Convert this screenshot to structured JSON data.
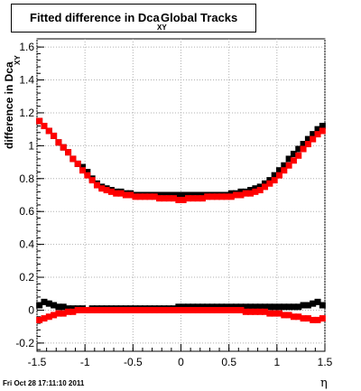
{
  "header": {
    "title_main": "Fitted difference in Dca",
    "title_sub": "XY",
    "title_rest": "Global Tracks"
  },
  "footer": {
    "timestamp": "Fri Oct 28 17:11:10 2011"
  },
  "colors": {
    "series_black": "#000000",
    "series_red": "#ff0000",
    "grid": "#b0b0b0",
    "frame": "#000000"
  },
  "chart_data": {
    "type": "scatter",
    "xlabel": "η",
    "ylabel": "difference in Dca",
    "ylabel_sub": "XY",
    "xlim": [
      -1.5,
      1.5
    ],
    "ylim": [
      -0.25,
      1.65
    ],
    "xticks": [
      -1.5,
      -1,
      -0.5,
      0,
      0.5,
      1,
      1.5
    ],
    "xtick_labels": [
      "-1.5",
      "-1",
      "-0.5",
      "0",
      "0.5",
      "1",
      "1.5"
    ],
    "yticks": [
      -0.2,
      0,
      0.2,
      0.4,
      0.6,
      0.8,
      1,
      1.2,
      1.4,
      1.6
    ],
    "ytick_labels": [
      "-0.2",
      "0",
      "0.2",
      "0.4",
      "0.6",
      "0.8",
      "1",
      "1.2",
      "1.4",
      "1.6"
    ],
    "grid": true,
    "series": [
      {
        "color": "black",
        "marker": "square",
        "x": [
          -1.475,
          -1.425,
          -1.375,
          -1.325,
          -1.275,
          -1.225,
          -1.175,
          -1.125,
          -1.075,
          -1.025,
          -0.975,
          -0.925,
          -0.875,
          -0.825,
          -0.775,
          -0.725,
          -0.675,
          -0.625,
          -0.575,
          -0.525,
          -0.475,
          -0.425,
          -0.375,
          -0.325,
          -0.275,
          -0.225,
          -0.175,
          -0.125,
          -0.075,
          -0.025,
          0.025,
          0.075,
          0.125,
          0.175,
          0.225,
          0.275,
          0.325,
          0.375,
          0.425,
          0.475,
          0.525,
          0.575,
          0.625,
          0.675,
          0.725,
          0.775,
          0.825,
          0.875,
          0.925,
          0.975,
          1.025,
          1.075,
          1.125,
          1.175,
          1.225,
          1.275,
          1.325,
          1.375,
          1.425,
          1.475
        ],
        "y": [
          1.15,
          1.12,
          1.09,
          1.06,
          1.02,
          0.99,
          0.96,
          0.92,
          0.89,
          0.87,
          0.84,
          0.8,
          0.77,
          0.75,
          0.74,
          0.73,
          0.72,
          0.72,
          0.71,
          0.71,
          0.7,
          0.7,
          0.7,
          0.7,
          0.7,
          0.7,
          0.7,
          0.7,
          0.7,
          0.7,
          0.7,
          0.7,
          0.7,
          0.7,
          0.7,
          0.7,
          0.7,
          0.7,
          0.7,
          0.7,
          0.71,
          0.71,
          0.72,
          0.72,
          0.73,
          0.74,
          0.75,
          0.77,
          0.79,
          0.82,
          0.85,
          0.88,
          0.92,
          0.95,
          0.98,
          1.01,
          1.04,
          1.07,
          1.1,
          1.12
        ]
      },
      {
        "color": "red",
        "marker": "square",
        "x": [
          -1.475,
          -1.425,
          -1.375,
          -1.325,
          -1.275,
          -1.225,
          -1.175,
          -1.125,
          -1.075,
          -1.025,
          -0.975,
          -0.925,
          -0.875,
          -0.825,
          -0.775,
          -0.725,
          -0.675,
          -0.625,
          -0.575,
          -0.525,
          -0.475,
          -0.425,
          -0.375,
          -0.325,
          -0.275,
          -0.225,
          -0.175,
          -0.125,
          -0.075,
          -0.025,
          0.025,
          0.075,
          0.125,
          0.175,
          0.225,
          0.275,
          0.325,
          0.375,
          0.425,
          0.475,
          0.525,
          0.575,
          0.625,
          0.675,
          0.725,
          0.775,
          0.825,
          0.875,
          0.925,
          0.975,
          1.025,
          1.075,
          1.125,
          1.175,
          1.225,
          1.275,
          1.325,
          1.375,
          1.425,
          1.475
        ],
        "y": [
          1.15,
          1.12,
          1.09,
          1.06,
          1.02,
          0.99,
          0.96,
          0.92,
          0.89,
          0.85,
          0.82,
          0.79,
          0.76,
          0.74,
          0.73,
          0.72,
          0.71,
          0.71,
          0.7,
          0.7,
          0.69,
          0.69,
          0.69,
          0.69,
          0.69,
          0.68,
          0.68,
          0.68,
          0.68,
          0.67,
          0.67,
          0.68,
          0.68,
          0.68,
          0.68,
          0.69,
          0.69,
          0.69,
          0.69,
          0.69,
          0.69,
          0.7,
          0.7,
          0.71,
          0.71,
          0.72,
          0.73,
          0.75,
          0.77,
          0.79,
          0.82,
          0.85,
          0.88,
          0.91,
          0.94,
          0.98,
          1.01,
          1.04,
          1.07,
          1.09
        ]
      },
      {
        "color": "black",
        "marker": "square",
        "x": [
          -1.475,
          -1.425,
          -1.375,
          -1.325,
          -1.275,
          -1.225,
          -1.175,
          -1.125,
          -1.075,
          -1.025,
          -0.975,
          -0.925,
          -0.875,
          -0.825,
          -0.775,
          -0.725,
          -0.675,
          -0.625,
          -0.575,
          -0.525,
          -0.475,
          -0.425,
          -0.375,
          -0.325,
          -0.275,
          -0.225,
          -0.175,
          -0.125,
          -0.075,
          -0.025,
          0.025,
          0.075,
          0.125,
          0.175,
          0.225,
          0.275,
          0.325,
          0.375,
          0.425,
          0.475,
          0.525,
          0.575,
          0.625,
          0.675,
          0.725,
          0.775,
          0.825,
          0.875,
          0.925,
          0.975,
          1.025,
          1.075,
          1.125,
          1.175,
          1.225,
          1.275,
          1.325,
          1.375,
          1.425,
          1.475
        ],
        "y": [
          0.03,
          0.05,
          0.04,
          0.03,
          0.02,
          0.02,
          0.01,
          0.01,
          0.01,
          0.01,
          0.0,
          0.01,
          0.01,
          0.01,
          0.01,
          0.01,
          0.01,
          0.01,
          0.01,
          0.01,
          0.01,
          0.01,
          0.01,
          0.01,
          0.01,
          0.01,
          0.01,
          0.01,
          0.01,
          0.02,
          0.02,
          0.02,
          0.02,
          0.02,
          0.02,
          0.02,
          0.02,
          0.02,
          0.02,
          0.02,
          0.02,
          0.02,
          0.02,
          0.02,
          0.02,
          0.02,
          0.02,
          0.02,
          0.02,
          0.02,
          0.02,
          0.02,
          0.02,
          0.02,
          0.02,
          0.03,
          0.03,
          0.04,
          0.05,
          0.03
        ]
      },
      {
        "color": "red",
        "marker": "square",
        "x": [
          -1.475,
          -1.425,
          -1.375,
          -1.325,
          -1.275,
          -1.225,
          -1.175,
          -1.125,
          -1.075,
          -1.025,
          -0.975,
          -0.925,
          -0.875,
          -0.825,
          -0.775,
          -0.725,
          -0.675,
          -0.625,
          -0.575,
          -0.525,
          -0.475,
          -0.425,
          -0.375,
          -0.325,
          -0.275,
          -0.225,
          -0.175,
          -0.125,
          -0.075,
          -0.025,
          0.025,
          0.075,
          0.125,
          0.175,
          0.225,
          0.275,
          0.325,
          0.375,
          0.425,
          0.475,
          0.525,
          0.575,
          0.625,
          0.675,
          0.725,
          0.775,
          0.825,
          0.875,
          0.925,
          0.975,
          1.025,
          1.075,
          1.125,
          1.175,
          1.225,
          1.275,
          1.325,
          1.375,
          1.425,
          1.475
        ],
        "y": [
          -0.06,
          -0.05,
          -0.04,
          -0.03,
          -0.02,
          -0.02,
          -0.01,
          -0.01,
          0.0,
          0.0,
          0.0,
          0.0,
          0.0,
          0.0,
          0.0,
          0.0,
          0.0,
          0.0,
          0.0,
          0.0,
          0.0,
          0.0,
          0.0,
          0.0,
          0.0,
          0.0,
          0.0,
          0.0,
          0.0,
          0.0,
          0.0,
          0.0,
          0.0,
          0.0,
          0.0,
          0.0,
          0.0,
          0.0,
          0.0,
          0.0,
          0.0,
          0.0,
          0.0,
          -0.01,
          -0.01,
          -0.01,
          -0.01,
          -0.01,
          -0.02,
          -0.02,
          -0.02,
          -0.03,
          -0.03,
          -0.04,
          -0.04,
          -0.05,
          -0.05,
          -0.06,
          -0.06,
          -0.05
        ]
      }
    ]
  }
}
